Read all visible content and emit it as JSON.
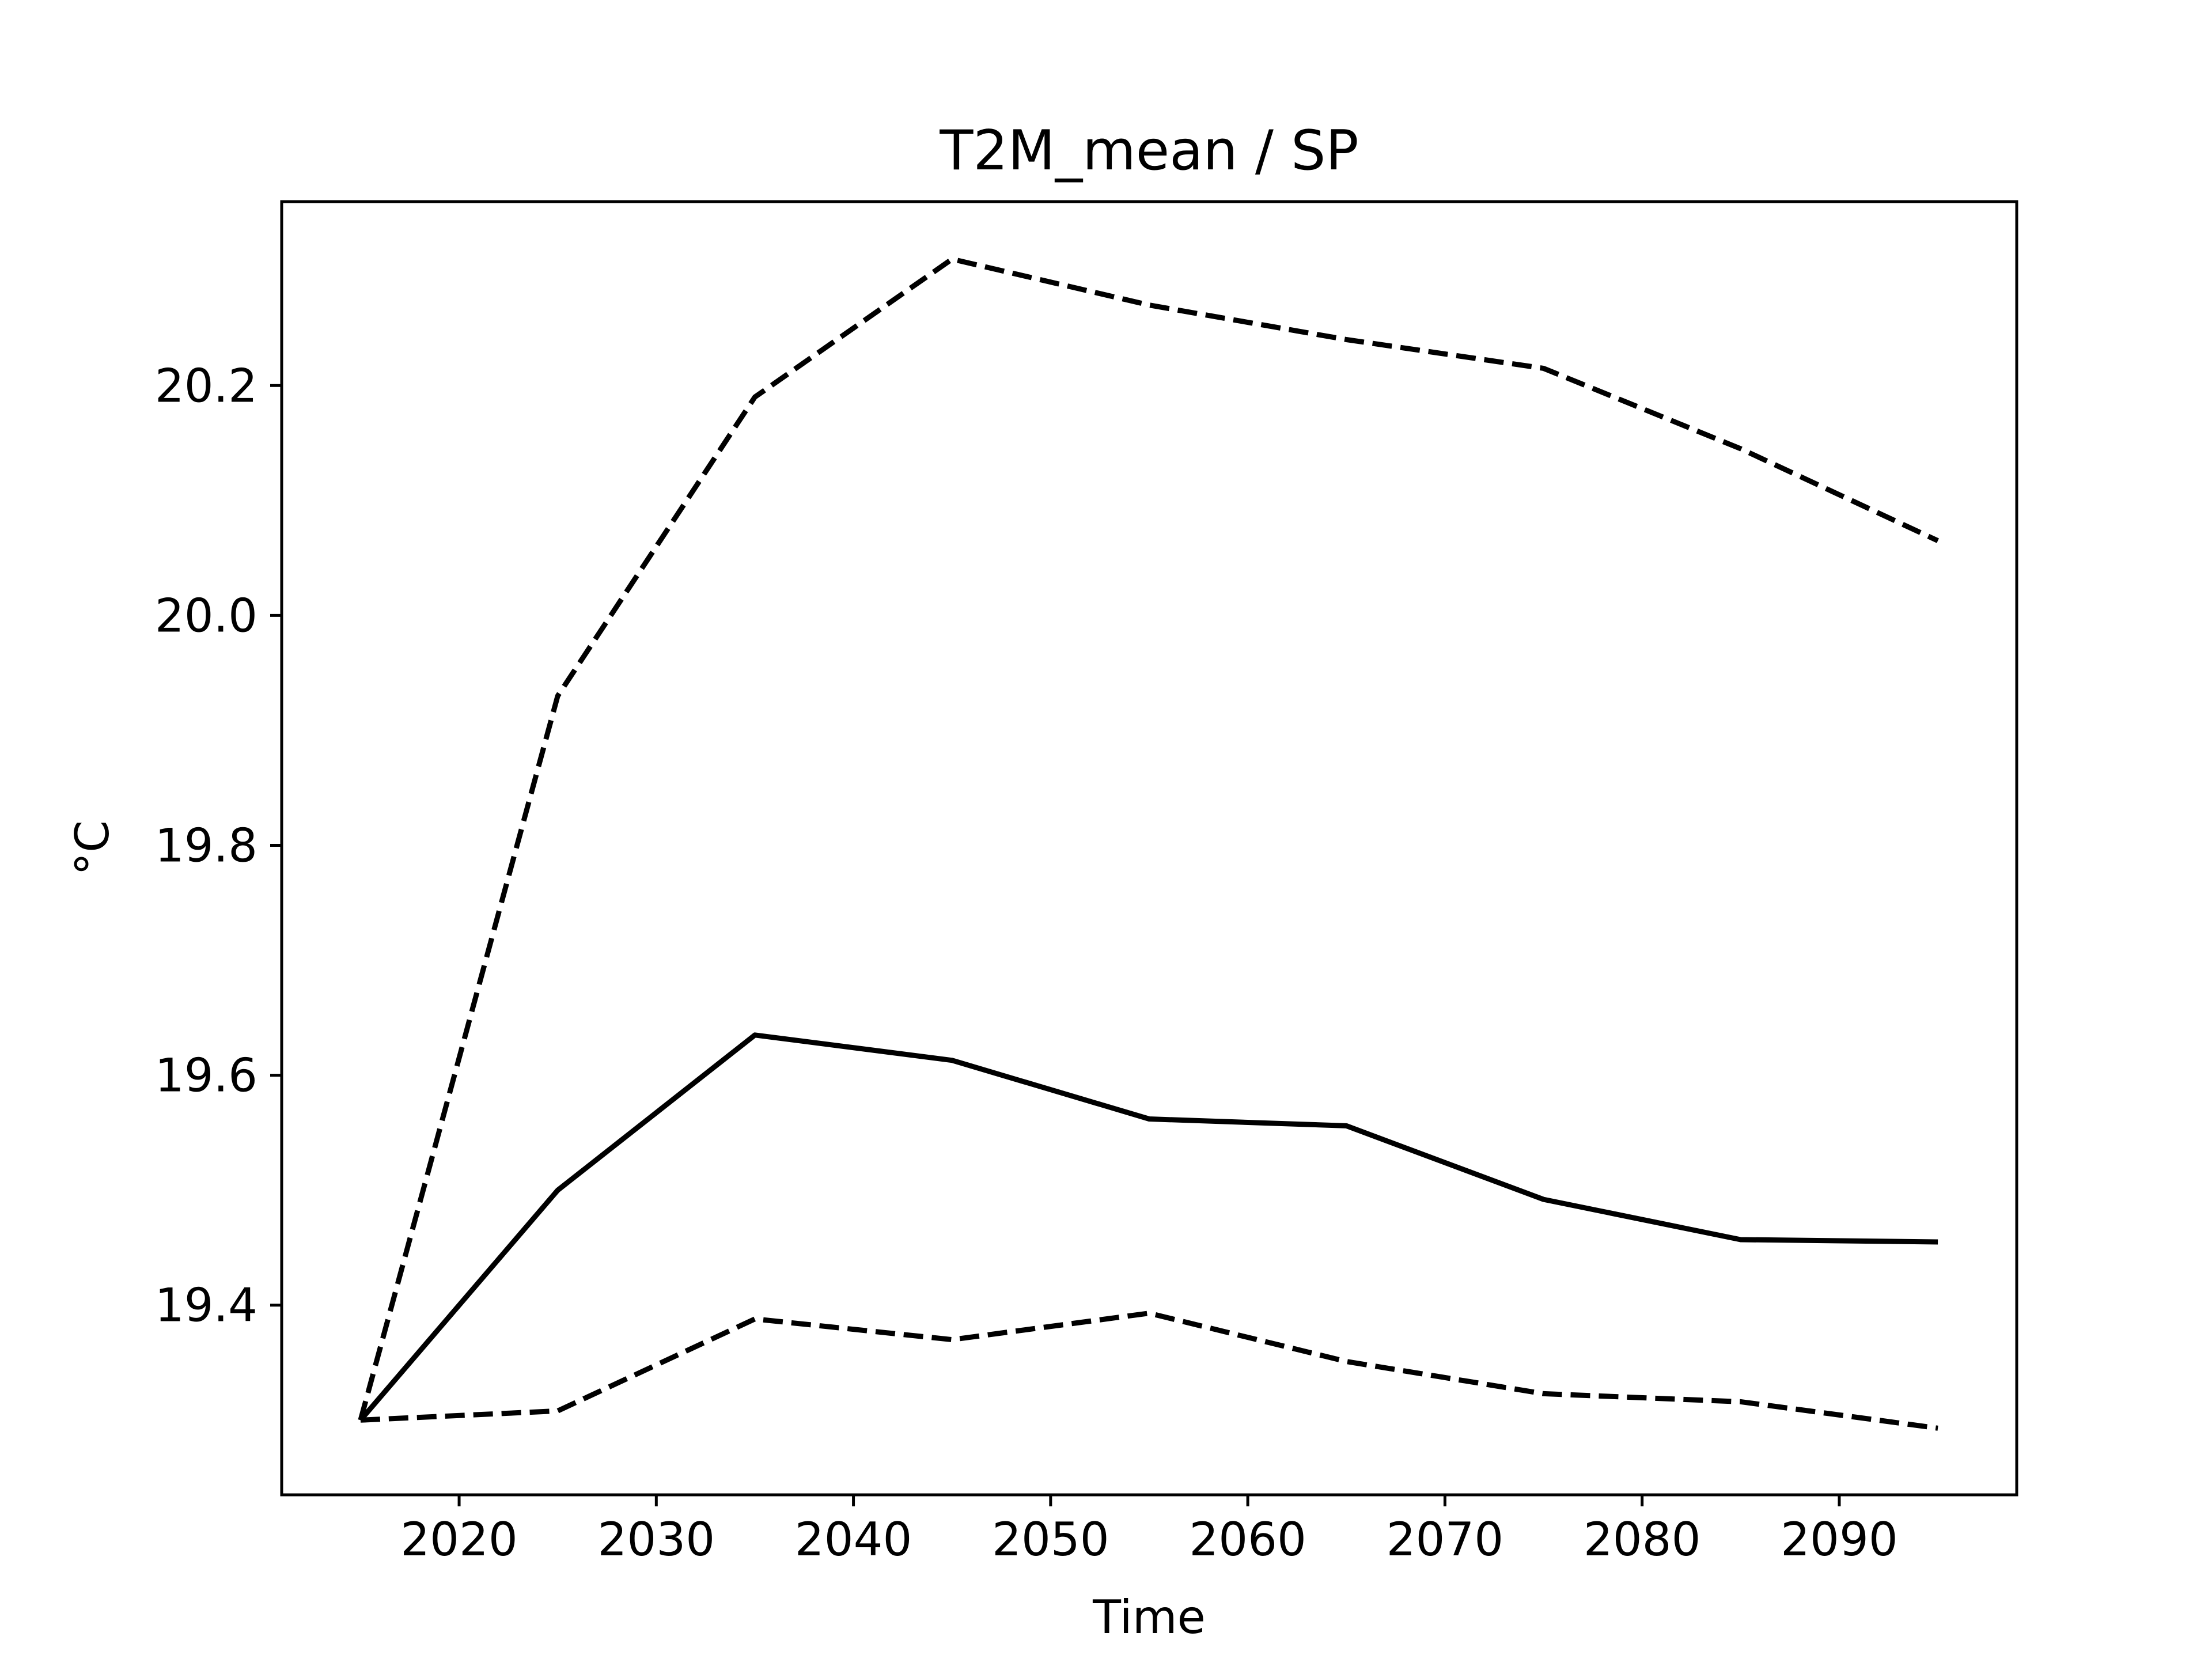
{
  "chart_data": {
    "type": "line",
    "title": "T2M_mean / SP",
    "xlabel": "Time",
    "ylabel": "°C",
    "xlim": [
      2011,
      2099
    ],
    "ylim": [
      19.235,
      20.36
    ],
    "x_ticks": [
      2020,
      2030,
      2040,
      2050,
      2060,
      2070,
      2080,
      2090
    ],
    "x_tick_labels": [
      "2020",
      "2030",
      "2040",
      "2050",
      "2060",
      "2070",
      "2080",
      "2090"
    ],
    "y_ticks": [
      19.4,
      19.6,
      19.8,
      20.0,
      20.2
    ],
    "y_tick_labels": [
      "19.4",
      "19.6",
      "19.8",
      "20.0",
      "20.2"
    ],
    "grid": false,
    "legend": false,
    "x": [
      2015,
      2025,
      2035,
      2045,
      2055,
      2065,
      2075,
      2085,
      2095
    ],
    "series": [
      {
        "style": "dashed",
        "color": "#000000",
        "values": [
          19.3,
          19.93,
          20.19,
          20.31,
          20.27,
          20.24,
          20.215,
          20.145,
          20.065
        ]
      },
      {
        "style": "solid",
        "color": "#000000",
        "values": [
          19.3,
          19.5,
          19.635,
          19.613,
          19.562,
          19.556,
          19.492,
          19.457,
          19.455
        ]
      },
      {
        "style": "dashed",
        "color": "#000000",
        "values": [
          19.3,
          19.308,
          19.388,
          19.37,
          19.393,
          19.351,
          19.323,
          19.316,
          19.293
        ]
      }
    ]
  }
}
